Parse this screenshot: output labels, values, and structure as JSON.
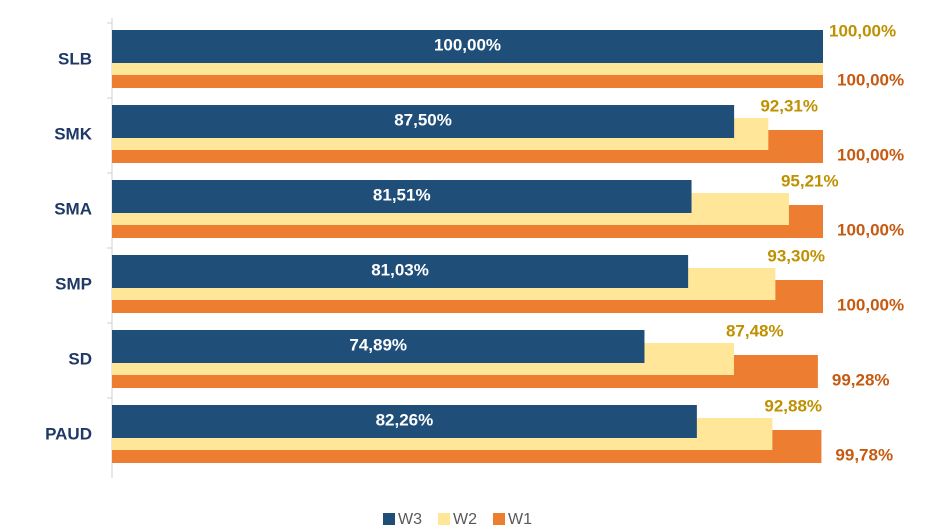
{
  "chart_data": {
    "type": "overlapping-bar",
    "categories": [
      "SLB",
      "SMK",
      "SMA",
      "SMP",
      "SD",
      "PAUD"
    ],
    "xlim": [
      0,
      100
    ],
    "legend": "bottom",
    "series": [
      {
        "name": "W3",
        "color": "#1f4e79",
        "values": [
          100,
          87.5,
          81.51,
          81.03,
          74.89,
          82.26
        ],
        "value_labels": [
          "100,00%",
          "87,50%",
          "81,51%",
          "81,03%",
          "74,89%",
          "82,26%"
        ]
      },
      {
        "name": "W2",
        "color": "#ffe699",
        "label_color": "#bf9000",
        "values": [
          100,
          92.31,
          95.21,
          93.3,
          87.48,
          92.88
        ],
        "value_labels": [
          "100,00%",
          "92,31%",
          "95,21%",
          "93,30%",
          "87,48%",
          "92,88%"
        ]
      },
      {
        "name": "W1",
        "color": "#ed7d31",
        "label_color": "#c55a11",
        "values": [
          100,
          100,
          100,
          100,
          99.28,
          99.78
        ],
        "value_labels": [
          "100,00%",
          "100,00%",
          "100,00%",
          "100,00%",
          "99,28%",
          "99,78%"
        ]
      }
    ]
  }
}
